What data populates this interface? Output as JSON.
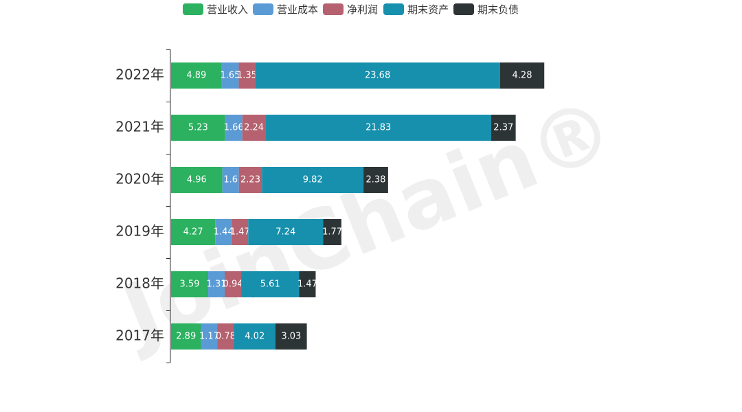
{
  "watermark": "JoinChain®",
  "chart_data": {
    "type": "bar",
    "orientation": "horizontal",
    "stacked": true,
    "title": "",
    "xlabel": "",
    "ylabel": "",
    "legend_position": "top-center",
    "categories": [
      "2022年",
      "2021年",
      "2020年",
      "2019年",
      "2018年",
      "2017年"
    ],
    "series": [
      {
        "name": "营业收入",
        "color": "#2bb15f",
        "values": [
          4.89,
          5.23,
          4.96,
          4.27,
          3.59,
          2.89
        ]
      },
      {
        "name": "营业成本",
        "color": "#5b9bd5",
        "values": [
          1.65,
          1.66,
          1.6,
          1.44,
          1.31,
          1.17
        ]
      },
      {
        "name": "净利润",
        "color": "#b5616f",
        "values": [
          1.35,
          2.24,
          2.23,
          1.47,
          0.94,
          0.78
        ]
      },
      {
        "name": "期末资产",
        "color": "#1790ad",
        "values": [
          23.68,
          21.83,
          9.82,
          7.24,
          5.61,
          4.02
        ]
      },
      {
        "name": "期末负债",
        "color": "#2d3436",
        "values": [
          4.28,
          2.37,
          2.38,
          1.77,
          1.47,
          3.03
        ]
      }
    ]
  }
}
